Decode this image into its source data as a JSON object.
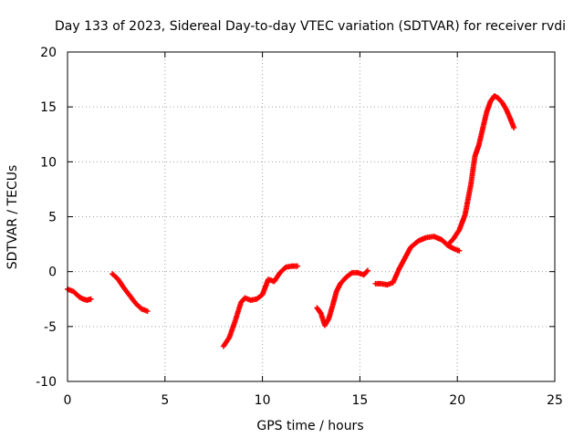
{
  "chart_data": {
    "type": "scatter",
    "title": "Day 133 of 2023, Sidereal Day-to-day VTEC variation (SDTVAR) for receiver rvdi",
    "xlabel": "GPS time / hours",
    "ylabel": "SDTVAR / TECUs",
    "xlim": [
      0,
      25
    ],
    "ylim": [
      -10,
      20
    ],
    "xticks": [
      0,
      5,
      10,
      15,
      20,
      25
    ],
    "xtick_labels": [
      "0",
      "5",
      "10",
      "15",
      "20",
      "25"
    ],
    "yticks": [
      -10,
      -5,
      0,
      5,
      10,
      15,
      20
    ],
    "ytick_labels": [
      "-10",
      "-5",
      "0",
      "5",
      "10",
      "15",
      "20"
    ],
    "grid": true,
    "marker": "plus",
    "series_color": "#ff0000",
    "segments": [
      {
        "x": [
          0.0,
          0.3,
          0.6,
          0.8,
          1.0,
          1.2
        ],
        "y": [
          -1.6,
          -1.8,
          -2.3,
          -2.5,
          -2.6,
          -2.5
        ]
      },
      {
        "x": [
          2.3,
          2.6,
          2.9,
          3.2,
          3.5,
          3.8,
          4.1
        ],
        "y": [
          -0.2,
          -0.7,
          -1.5,
          -2.2,
          -2.9,
          -3.4,
          -3.6
        ]
      },
      {
        "x": [
          8.0,
          8.3,
          8.6,
          8.9,
          9.1,
          9.4,
          9.7,
          10.0,
          10.3,
          10.6,
          10.9,
          11.2,
          11.5,
          11.8
        ],
        "y": [
          -6.8,
          -6.0,
          -4.5,
          -2.8,
          -2.4,
          -2.6,
          -2.5,
          -2.1,
          -0.7,
          -0.9,
          -0.1,
          0.4,
          0.5,
          0.5
        ]
      },
      {
        "x": [
          12.8,
          13.0,
          13.2,
          13.4,
          13.6,
          13.8,
          14.0,
          14.3,
          14.6,
          14.9,
          15.2,
          15.4
        ],
        "y": [
          -3.3,
          -3.8,
          -4.9,
          -4.3,
          -3.1,
          -1.8,
          -1.1,
          -0.5,
          -0.1,
          -0.1,
          -0.3,
          0.1
        ]
      },
      {
        "x": [
          15.8,
          16.1,
          16.4,
          16.7,
          17.0,
          17.3,
          17.6,
          18.0,
          18.4,
          18.8,
          19.2,
          19.5,
          19.8,
          20.1
        ],
        "y": [
          -1.1,
          -1.1,
          -1.2,
          -1.0,
          0.2,
          1.2,
          2.2,
          2.8,
          3.1,
          3.2,
          2.9,
          2.4,
          2.1,
          1.9
        ]
      },
      {
        "x": [
          19.5,
          19.8,
          20.1,
          20.4,
          20.7,
          20.9,
          21.1,
          21.3,
          21.5,
          21.7,
          21.9,
          22.1,
          22.3,
          22.5,
          22.7,
          22.9
        ],
        "y": [
          2.4,
          3.0,
          3.8,
          5.2,
          8.0,
          10.5,
          11.5,
          13.0,
          14.5,
          15.5,
          16.0,
          15.8,
          15.4,
          14.8,
          14.0,
          13.1
        ]
      }
    ]
  }
}
